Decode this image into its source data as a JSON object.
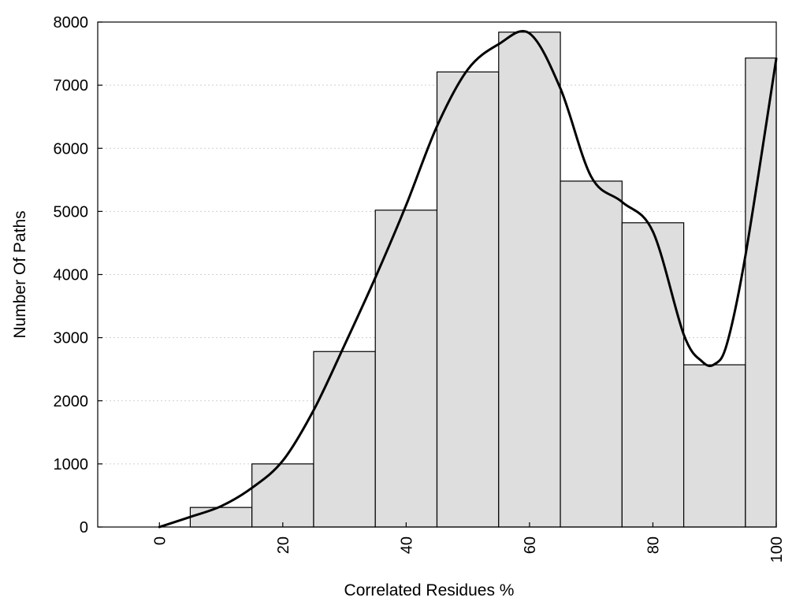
{
  "chart_data": {
    "type": "bar",
    "title": "",
    "xlabel": "Correlated Residues %",
    "ylabel": "Number Of Paths",
    "xlim": [
      -10,
      100
    ],
    "ylim": [
      0,
      8000
    ],
    "x_ticks": [
      0,
      20,
      40,
      60,
      80,
      100
    ],
    "x_tick_labels": [
      "0",
      "20",
      "40",
      "60",
      "80",
      "100"
    ],
    "y_ticks": [
      0,
      1000,
      2000,
      3000,
      4000,
      5000,
      6000,
      7000,
      8000
    ],
    "y_tick_labels": [
      "0",
      "1000",
      "2000",
      "3000",
      "4000",
      "5000",
      "6000",
      "7000",
      "8000"
    ],
    "grid": "horizontal dotted",
    "bins": [
      {
        "from": -5,
        "to": 5,
        "value": 0
      },
      {
        "from": 5,
        "to": 15,
        "value": 310
      },
      {
        "from": 15,
        "to": 25,
        "value": 1000
      },
      {
        "from": 25,
        "to": 35,
        "value": 2780
      },
      {
        "from": 35,
        "to": 45,
        "value": 5020
      },
      {
        "from": 45,
        "to": 55,
        "value": 7210
      },
      {
        "from": 55,
        "to": 65,
        "value": 7840
      },
      {
        "from": 65,
        "to": 75,
        "value": 5480
      },
      {
        "from": 75,
        "to": 85,
        "value": 4820
      },
      {
        "from": 85,
        "to": 95,
        "value": 2570
      },
      {
        "from": 95,
        "to": 100,
        "value": 7430
      }
    ],
    "curve": {
      "x": [
        0,
        5,
        10,
        15,
        20,
        25,
        30,
        35,
        40,
        45,
        50,
        55,
        60,
        65,
        70,
        75,
        80,
        85,
        88,
        90,
        92,
        95,
        100
      ],
      "y": [
        0,
        160,
        330,
        620,
        1050,
        1850,
        2880,
        3950,
        5100,
        6350,
        7250,
        7650,
        7820,
        6950,
        5550,
        5150,
        4680,
        3050,
        2620,
        2580,
        2900,
        4300,
        7420
      ]
    },
    "colors": {
      "bar_fill": "#dedede",
      "bar_stroke": "#000000",
      "curve": "#000000"
    }
  }
}
